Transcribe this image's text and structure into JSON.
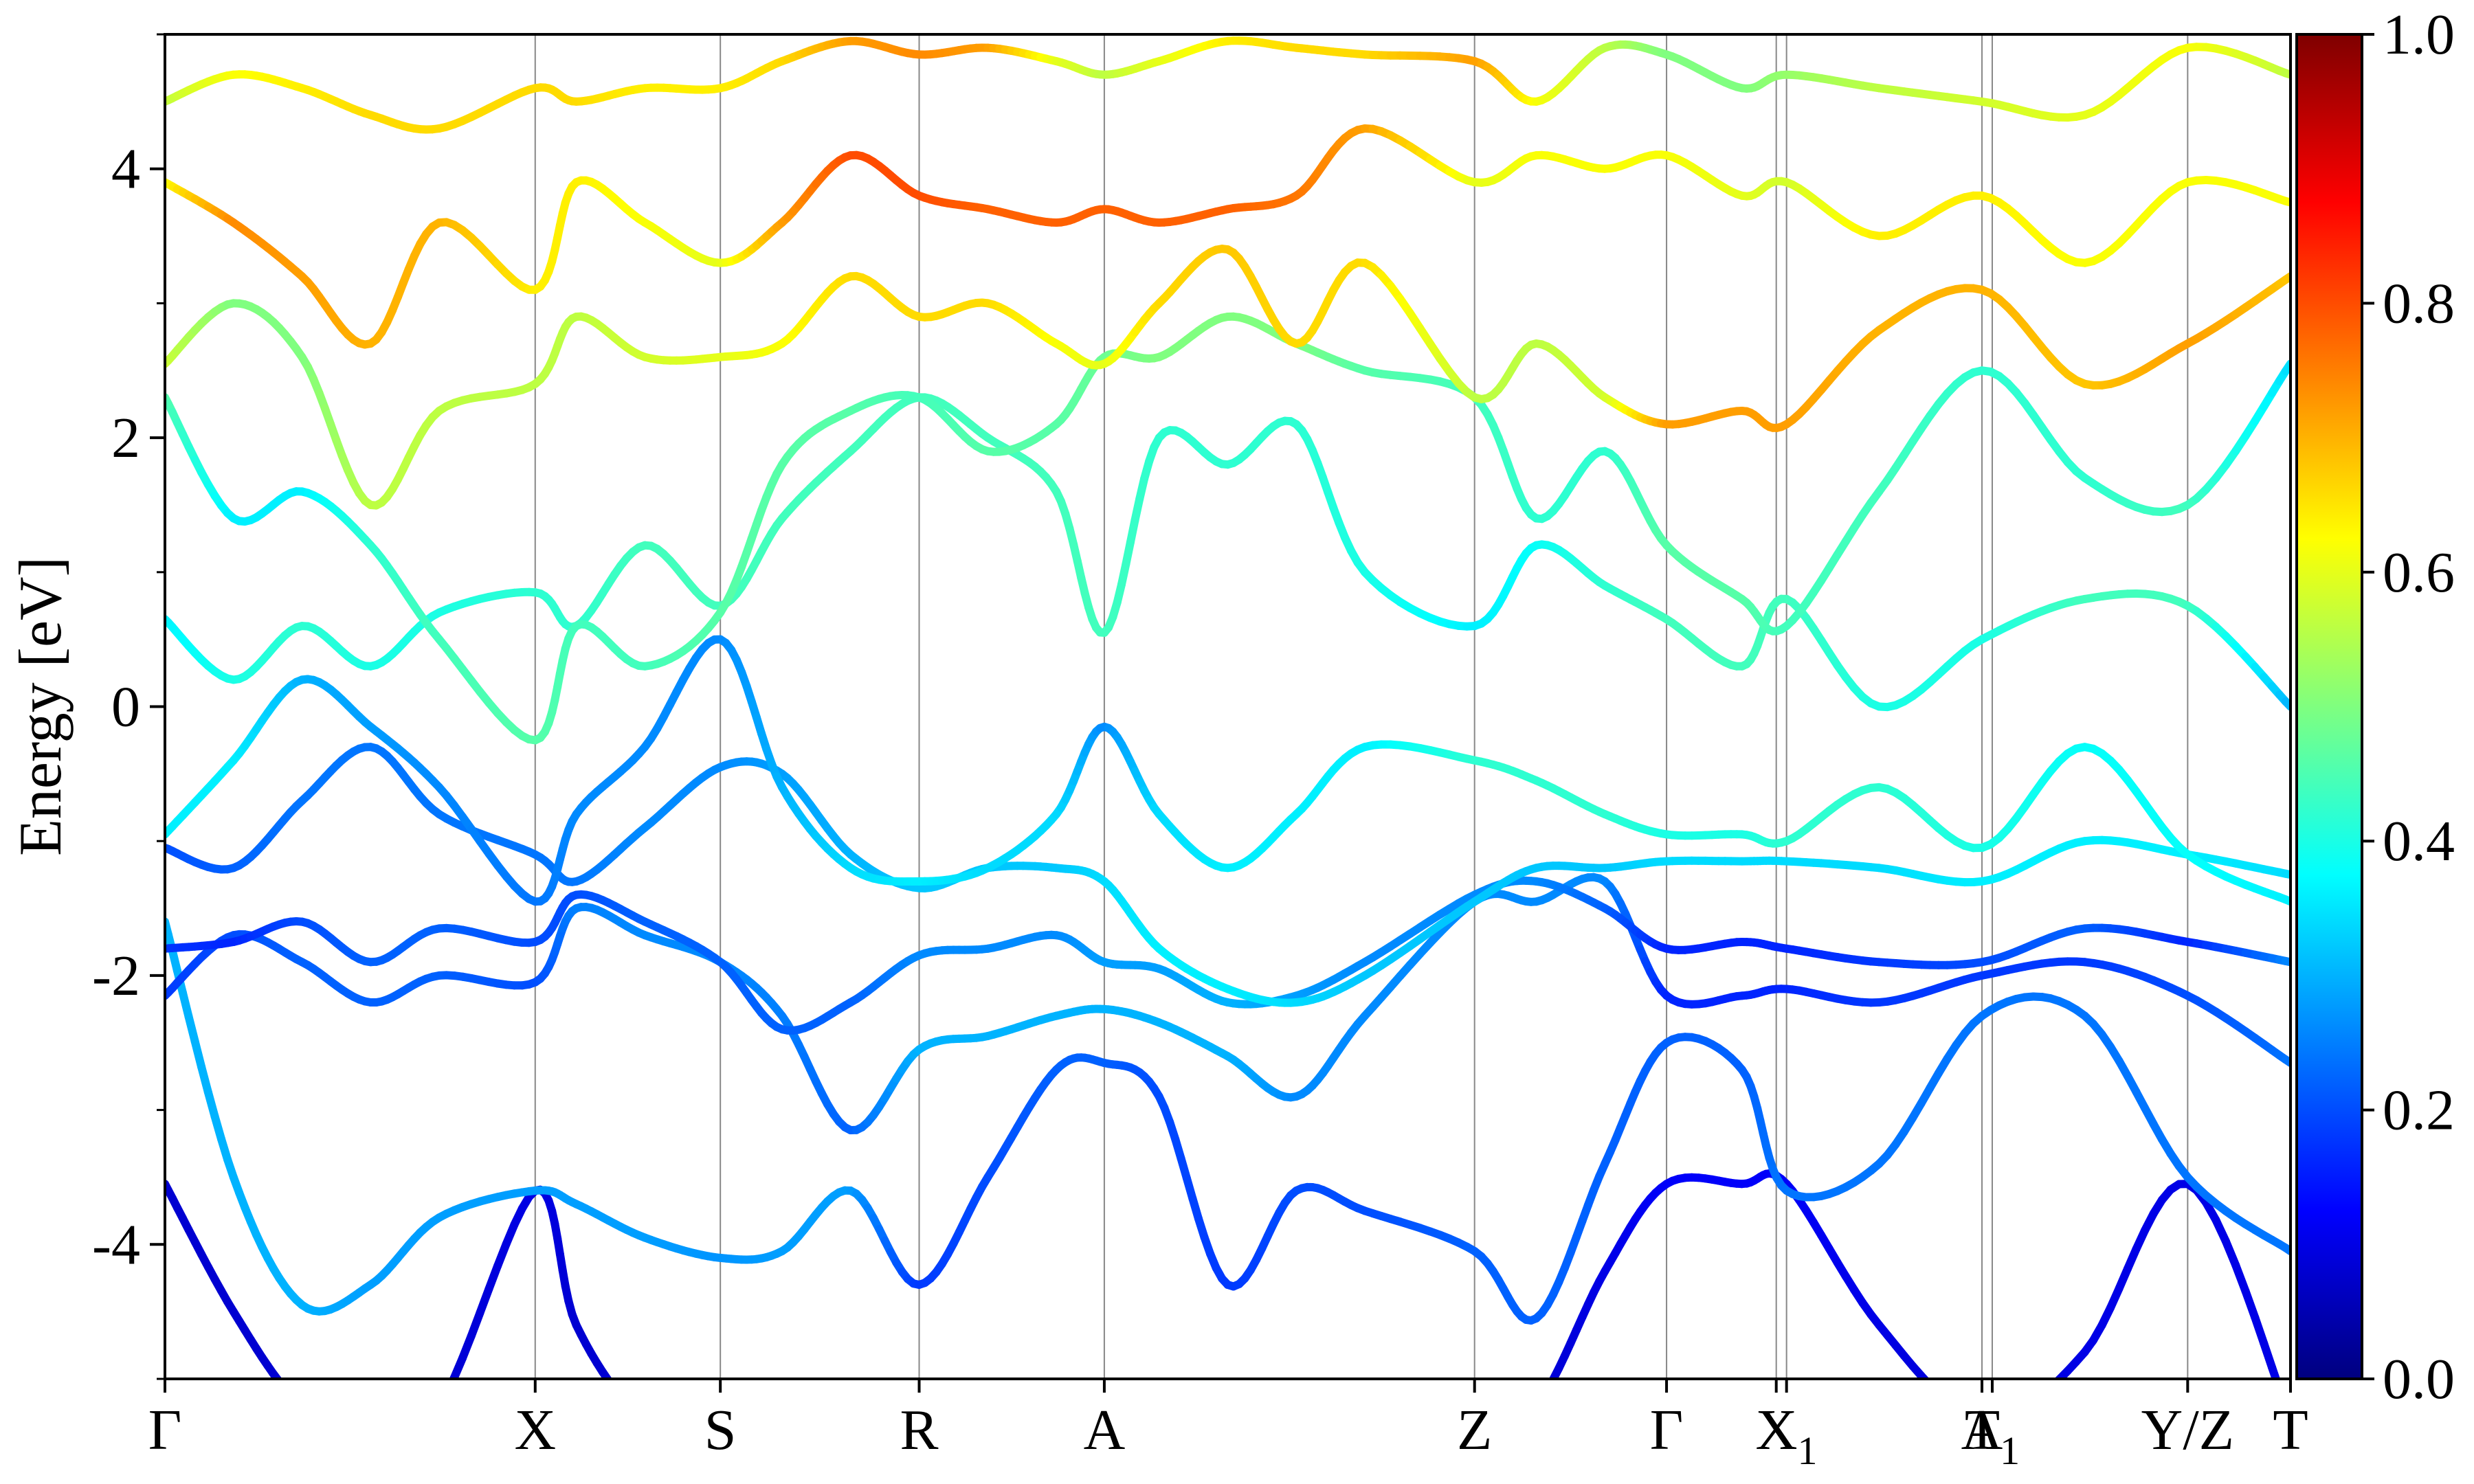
{
  "chart_data": {
    "type": "line",
    "ylabel": "Energy [eV]",
    "ylim": [
      -5,
      5
    ],
    "y_ticks": [
      {
        "value": -4,
        "label": "-4"
      },
      {
        "value": -2,
        "label": "-2"
      },
      {
        "value": 0,
        "label": "0"
      },
      {
        "value": 2,
        "label": "2"
      },
      {
        "value": 4,
        "label": "4"
      }
    ],
    "xlim": [
      0,
      3.1
    ],
    "k_points": [
      {
        "label": "Γ",
        "x": 0.0
      },
      {
        "label": "X",
        "x": 0.54
      },
      {
        "label": "S",
        "x": 0.81
      },
      {
        "label": "R",
        "x": 1.1
      },
      {
        "label": "A",
        "x": 1.37
      },
      {
        "label": "Z",
        "x": 1.91
      },
      {
        "label": "Γ",
        "x": 2.19
      },
      {
        "label": "X",
        "x": 2.35
      },
      {
        "label": "X",
        "x": 2.365,
        "sub": "1"
      },
      {
        "label": "A",
        "x": 2.65
      },
      {
        "label": "T",
        "x": 2.665,
        "sub": "1"
      },
      {
        "label": "Y/Z",
        "x": 2.95
      },
      {
        "label": "T",
        "x": 3.1
      }
    ],
    "colorbar": {
      "range": [
        0,
        1
      ],
      "tick_labels": [
        "0.0",
        "0.2",
        "0.4",
        "0.6",
        "0.8",
        "1.0"
      ],
      "colormap": "jet",
      "colors": [
        "#00007f",
        "#0000ff",
        "#007fff",
        "#00ffff",
        "#7fff7f",
        "#ffff00",
        "#ff7f00",
        "#ff0000",
        "#7f0000"
      ]
    },
    "grid": false,
    "series": [
      {
        "x": [
          0,
          0.1,
          0.2,
          0.3,
          0.4,
          0.54,
          0.6,
          0.7,
          0.81,
          0.9,
          1.0,
          1.1,
          1.2,
          1.3,
          1.37,
          1.45,
          1.55,
          1.65,
          1.75,
          1.91,
          2.0,
          2.1,
          2.19,
          2.3,
          2.365,
          2.5,
          2.65,
          2.8,
          2.95,
          3.1
        ],
        "y": [
          -3.55,
          -4.5,
          -5.2,
          -5.3,
          -5.2,
          -3.6,
          -4.6,
          -5.3,
          -5.3,
          -5.3,
          -5.3,
          -5.3,
          -5.3,
          -5.3,
          -5.3,
          -5.3,
          -5.3,
          -5.3,
          -5.3,
          -5.3,
          -5.2,
          -4.2,
          -3.55,
          -3.55,
          -3.55,
          -4.6,
          -5.3,
          -4.8,
          -3.55,
          -5.3
        ],
        "weight": [
          0.08,
          0.08,
          0.08,
          0.08,
          0.08,
          0.1,
          0.08,
          0.08,
          0.08,
          0.08,
          0.08,
          0.08,
          0.08,
          0.08,
          0.08,
          0.08,
          0.08,
          0.08,
          0.08,
          0.08,
          0.08,
          0.1,
          0.12,
          0.12,
          0.12,
          0.1,
          0.08,
          0.1,
          0.1,
          0.1
        ]
      },
      {
        "x": [
          0,
          0.1,
          0.2,
          0.3,
          0.4,
          0.54,
          0.6,
          0.7,
          0.81,
          0.9,
          1.0,
          1.1,
          1.2,
          1.3,
          1.37,
          1.45,
          1.55,
          1.65,
          1.75,
          1.91,
          2.0,
          2.1,
          2.19,
          2.3,
          2.365,
          2.5,
          2.65,
          2.8,
          2.95,
          3.1
        ],
        "y": [
          -1.6,
          -3.5,
          -4.45,
          -4.3,
          -3.8,
          -3.6,
          -3.7,
          -3.95,
          -4.1,
          -4.05,
          -3.6,
          -4.3,
          -3.5,
          -2.7,
          -2.65,
          -2.9,
          -4.3,
          -3.6,
          -3.75,
          -4.05,
          -4.55,
          -3.4,
          -2.5,
          -2.7,
          -3.6,
          -3.4,
          -2.3,
          -2.3,
          -3.5,
          -4.05
        ],
        "weight": [
          0.3,
          0.3,
          0.3,
          0.28,
          0.28,
          0.28,
          0.28,
          0.28,
          0.27,
          0.28,
          0.28,
          0.18,
          0.2,
          0.22,
          0.22,
          0.2,
          0.18,
          0.2,
          0.2,
          0.22,
          0.22,
          0.22,
          0.22,
          0.22,
          0.24,
          0.24,
          0.24,
          0.24,
          0.24,
          0.24
        ]
      },
      {
        "x": [
          0,
          0.1,
          0.2,
          0.3,
          0.4,
          0.54,
          0.6,
          0.7,
          0.81,
          0.9,
          1.0,
          1.1,
          1.2,
          1.3,
          1.37,
          1.45,
          1.55,
          1.65,
          1.75,
          1.91,
          2.0,
          2.1,
          2.19,
          2.3,
          2.365,
          2.5,
          2.65,
          2.8,
          2.95,
          3.1
        ],
        "y": [
          -2.15,
          -1.7,
          -1.9,
          -2.2,
          -2.0,
          -2.05,
          -1.5,
          -1.7,
          -1.9,
          -2.3,
          -3.15,
          -2.55,
          -2.45,
          -2.3,
          -2.25,
          -2.35,
          -2.6,
          -2.9,
          -2.3,
          -1.45,
          -1.45,
          -1.3,
          -2.15,
          -2.15,
          -2.1,
          -2.2,
          -2.0,
          -1.9,
          -2.15,
          -2.65
        ],
        "weight": [
          0.18,
          0.2,
          0.22,
          0.22,
          0.22,
          0.2,
          0.25,
          0.26,
          0.26,
          0.25,
          0.22,
          0.3,
          0.3,
          0.3,
          0.3,
          0.3,
          0.3,
          0.26,
          0.26,
          0.26,
          0.26,
          0.26,
          0.16,
          0.16,
          0.16,
          0.18,
          0.18,
          0.18,
          0.2,
          0.24
        ]
      },
      {
        "x": [
          0,
          0.1,
          0.2,
          0.3,
          0.4,
          0.54,
          0.6,
          0.7,
          0.81,
          0.9,
          1.0,
          1.1,
          1.2,
          1.3,
          1.37,
          1.45,
          1.55,
          1.65,
          1.75,
          1.91,
          2.0,
          2.1,
          2.19,
          2.3,
          2.365,
          2.5,
          2.65,
          2.8,
          2.95,
          3.1
        ],
        "y": [
          -1.8,
          -1.75,
          -1.6,
          -1.9,
          -1.65,
          -1.75,
          -1.4,
          -1.6,
          -1.9,
          -2.4,
          -2.2,
          -1.85,
          -1.8,
          -1.7,
          -1.9,
          -1.95,
          -2.2,
          -2.15,
          -1.9,
          -1.4,
          -1.3,
          -1.5,
          -1.8,
          -1.75,
          -1.8,
          -1.9,
          -1.9,
          -1.65,
          -1.75,
          -1.9
        ],
        "weight": [
          0.18,
          0.16,
          0.2,
          0.22,
          0.22,
          0.2,
          0.2,
          0.22,
          0.22,
          0.22,
          0.22,
          0.26,
          0.26,
          0.26,
          0.28,
          0.28,
          0.3,
          0.28,
          0.26,
          0.26,
          0.26,
          0.22,
          0.16,
          0.16,
          0.16,
          0.18,
          0.2,
          0.22,
          0.16,
          0.26
        ]
      },
      {
        "x": [
          0,
          0.1,
          0.2,
          0.3,
          0.4,
          0.54,
          0.6,
          0.7,
          0.81,
          0.9,
          1.0,
          1.1,
          1.2,
          1.3,
          1.37,
          1.45,
          1.55,
          1.65,
          1.75,
          1.91,
          2.0,
          2.1,
          2.19,
          2.3,
          2.365,
          2.5,
          2.65,
          2.8,
          2.95,
          3.1
        ],
        "y": [
          -1.05,
          -1.2,
          -0.7,
          -0.3,
          -0.8,
          -1.1,
          -1.3,
          -0.9,
          -0.45,
          -0.5,
          -1.1,
          -1.35,
          -1.2,
          -1.2,
          -1.3,
          -1.8,
          -2.1,
          -2.2,
          -2.0,
          -1.45,
          -1.2,
          -1.2,
          -1.15,
          -1.15,
          -1.15,
          -1.2,
          -1.3,
          -1.0,
          -1.1,
          -1.25
        ],
        "weight": [
          0.2,
          0.22,
          0.24,
          0.24,
          0.24,
          0.24,
          0.24,
          0.26,
          0.26,
          0.28,
          0.3,
          0.32,
          0.32,
          0.32,
          0.34,
          0.36,
          0.36,
          0.34,
          0.32,
          0.32,
          0.32,
          0.32,
          0.34,
          0.34,
          0.34,
          0.34,
          0.36,
          0.36,
          0.36,
          0.34
        ]
      },
      {
        "x": [
          0,
          0.1,
          0.2,
          0.3,
          0.4,
          0.54,
          0.6,
          0.7,
          0.81,
          0.9,
          1.0,
          1.1,
          1.2,
          1.3,
          1.37,
          1.45,
          1.55,
          1.65,
          1.75,
          1.91,
          2.0,
          2.1,
          2.19,
          2.3,
          2.365,
          2.5,
          2.65,
          2.8,
          2.95,
          3.1
        ],
        "y": [
          -0.95,
          -0.4,
          0.2,
          -0.15,
          -0.6,
          -1.45,
          -0.8,
          -0.3,
          0.5,
          -0.6,
          -1.2,
          -1.3,
          -1.2,
          -0.8,
          -0.15,
          -0.8,
          -1.2,
          -0.8,
          -0.3,
          -0.4,
          -0.55,
          -0.8,
          -0.95,
          -0.95,
          -1.0,
          -0.6,
          -1.05,
          -0.3,
          -1.1,
          -1.45
        ],
        "weight": [
          0.36,
          0.36,
          0.3,
          0.28,
          0.26,
          0.24,
          0.26,
          0.26,
          0.26,
          0.3,
          0.34,
          0.36,
          0.34,
          0.34,
          0.26,
          0.34,
          0.36,
          0.36,
          0.36,
          0.42,
          0.42,
          0.42,
          0.4,
          0.4,
          0.42,
          0.42,
          0.4,
          0.38,
          0.38,
          0.36
        ]
      },
      {
        "x": [
          0,
          0.1,
          0.2,
          0.3,
          0.4,
          0.54,
          0.6,
          0.7,
          0.81,
          0.9,
          1.0,
          1.1,
          1.2,
          1.3,
          1.37,
          1.45,
          1.55,
          1.65,
          1.75,
          1.91,
          2.0,
          2.1,
          2.19,
          2.3,
          2.365,
          2.5,
          2.65,
          2.8,
          2.95,
          3.1
        ],
        "y": [
          0.65,
          0.2,
          0.6,
          0.3,
          0.7,
          0.85,
          0.6,
          1.2,
          0.75,
          1.4,
          1.9,
          2.3,
          2.0,
          1.6,
          0.55,
          2.0,
          1.8,
          2.1,
          1.0,
          0.6,
          1.2,
          0.9,
          0.65,
          0.3,
          0.8,
          0.0,
          0.5,
          0.8,
          0.75,
          0.0
        ],
        "weight": [
          0.36,
          0.4,
          0.42,
          0.4,
          0.4,
          0.42,
          0.42,
          0.44,
          0.44,
          0.44,
          0.44,
          0.44,
          0.44,
          0.44,
          0.44,
          0.42,
          0.42,
          0.42,
          0.4,
          0.36,
          0.38,
          0.42,
          0.44,
          0.44,
          0.44,
          0.4,
          0.4,
          0.44,
          0.44,
          0.3
        ]
      },
      {
        "x": [
          0,
          0.1,
          0.2,
          0.3,
          0.4,
          0.54,
          0.6,
          0.7,
          0.81,
          0.9,
          1.0,
          1.1,
          1.2,
          1.3,
          1.37,
          1.45,
          1.55,
          1.65,
          1.75,
          1.91,
          2.0,
          2.1,
          2.19,
          2.3,
          2.365,
          2.5,
          2.65,
          2.8,
          2.95,
          3.1
        ],
        "y": [
          2.3,
          1.4,
          1.6,
          1.2,
          0.5,
          -0.25,
          0.6,
          0.3,
          0.7,
          1.8,
          2.2,
          2.3,
          1.9,
          2.1,
          2.6,
          2.6,
          2.9,
          2.7,
          2.5,
          2.3,
          1.4,
          1.9,
          1.2,
          0.8,
          0.6,
          1.6,
          2.5,
          1.7,
          1.5,
          2.55
        ],
        "weight": [
          0.46,
          0.36,
          0.36,
          0.42,
          0.44,
          0.46,
          0.44,
          0.44,
          0.46,
          0.46,
          0.46,
          0.44,
          0.46,
          0.46,
          0.48,
          0.5,
          0.5,
          0.5,
          0.46,
          0.44,
          0.42,
          0.42,
          0.46,
          0.46,
          0.44,
          0.44,
          0.42,
          0.42,
          0.44,
          0.34
        ]
      },
      {
        "x": [
          0,
          0.1,
          0.2,
          0.3,
          0.4,
          0.54,
          0.6,
          0.7,
          0.81,
          0.9,
          1.0,
          1.1,
          1.2,
          1.3,
          1.37,
          1.45,
          1.55,
          1.65,
          1.75,
          1.91,
          2.0,
          2.1,
          2.19,
          2.3,
          2.365,
          2.5,
          2.65,
          2.8,
          2.95,
          3.1
        ],
        "y": [
          2.55,
          3.0,
          2.6,
          1.5,
          2.2,
          2.4,
          2.9,
          2.6,
          2.6,
          2.7,
          3.2,
          2.9,
          3.0,
          2.7,
          2.55,
          3.0,
          3.4,
          2.7,
          3.3,
          2.3,
          2.7,
          2.3,
          2.1,
          2.2,
          2.1,
          2.8,
          3.1,
          2.4,
          2.7,
          3.2
        ],
        "weight": [
          0.58,
          0.5,
          0.5,
          0.56,
          0.56,
          0.56,
          0.56,
          0.58,
          0.6,
          0.62,
          0.66,
          0.66,
          0.66,
          0.62,
          0.6,
          0.66,
          0.68,
          0.66,
          0.66,
          0.56,
          0.56,
          0.58,
          0.72,
          0.72,
          0.72,
          0.7,
          0.7,
          0.68,
          0.72,
          0.68
        ]
      },
      {
        "x": [
          0,
          0.1,
          0.2,
          0.3,
          0.4,
          0.54,
          0.6,
          0.7,
          0.81,
          0.9,
          1.0,
          1.1,
          1.2,
          1.3,
          1.37,
          1.45,
          1.55,
          1.65,
          1.75,
          1.91,
          2.0,
          2.1,
          2.19,
          2.3,
          2.365,
          2.5,
          2.65,
          2.8,
          2.95,
          3.1
        ],
        "y": [
          3.9,
          3.6,
          3.2,
          2.7,
          3.6,
          3.1,
          3.9,
          3.6,
          3.3,
          3.6,
          4.1,
          3.8,
          3.7,
          3.6,
          3.7,
          3.6,
          3.7,
          3.8,
          4.3,
          3.9,
          4.1,
          4.0,
          4.1,
          3.8,
          3.9,
          3.5,
          3.8,
          3.3,
          3.9,
          3.75
        ],
        "weight": [
          0.62,
          0.74,
          0.72,
          0.7,
          0.7,
          0.64,
          0.64,
          0.62,
          0.6,
          0.72,
          0.8,
          0.8,
          0.78,
          0.78,
          0.78,
          0.78,
          0.78,
          0.76,
          0.72,
          0.6,
          0.62,
          0.62,
          0.62,
          0.6,
          0.58,
          0.64,
          0.64,
          0.62,
          0.62,
          0.62
        ]
      },
      {
        "x": [
          0,
          0.1,
          0.2,
          0.3,
          0.4,
          0.54,
          0.6,
          0.7,
          0.81,
          0.9,
          1.0,
          1.1,
          1.2,
          1.3,
          1.37,
          1.45,
          1.55,
          1.65,
          1.75,
          1.91,
          2.0,
          2.1,
          2.19,
          2.3,
          2.365,
          2.5,
          2.65,
          2.8,
          2.95,
          3.1
        ],
        "y": [
          4.5,
          4.7,
          4.6,
          4.4,
          4.3,
          4.6,
          4.5,
          4.6,
          4.6,
          4.8,
          4.95,
          4.85,
          4.9,
          4.8,
          4.7,
          4.8,
          4.95,
          4.9,
          4.85,
          4.8,
          4.5,
          4.9,
          4.85,
          4.6,
          4.7,
          4.6,
          4.5,
          4.4,
          4.9,
          4.7
        ],
        "weight": [
          0.56,
          0.62,
          0.64,
          0.66,
          0.66,
          0.66,
          0.66,
          0.64,
          0.64,
          0.66,
          0.72,
          0.74,
          0.72,
          0.6,
          0.56,
          0.6,
          0.64,
          0.66,
          0.66,
          0.72,
          0.62,
          0.56,
          0.5,
          0.5,
          0.52,
          0.56,
          0.58,
          0.6,
          0.62,
          0.56
        ]
      }
    ]
  }
}
